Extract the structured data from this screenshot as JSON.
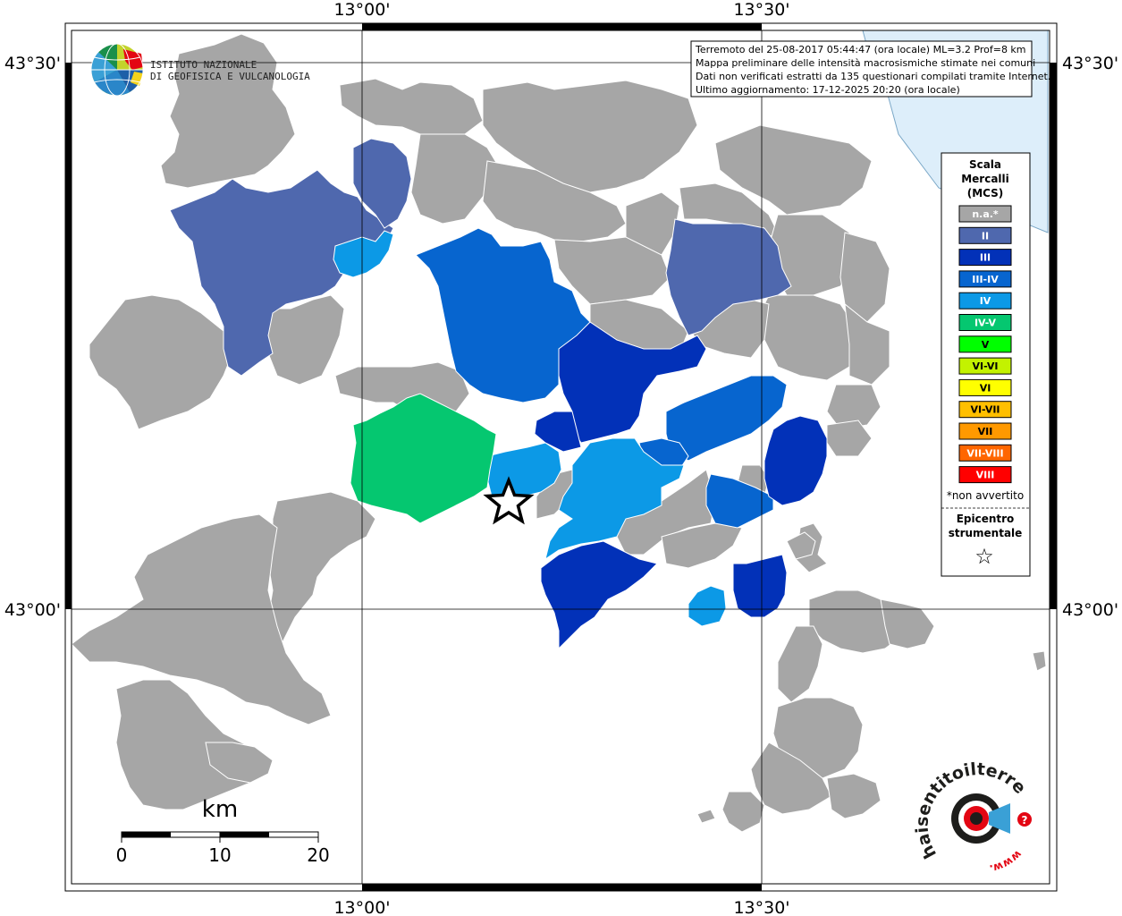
{
  "coords": {
    "top_left_lon": "13°00'",
    "top_right_lon": "13°30'",
    "bottom_left_lon": "13°00'",
    "bottom_right_lon": "13°30'",
    "left_top_lat": "43°30'",
    "left_bottom_lat": "43°00'",
    "right_top_lat": "43°30'",
    "right_bottom_lat": "43°00'"
  },
  "institute": {
    "line1": "ISTITUTO NAZIONALE",
    "line2": "DI GEOFISICA E VULCANOLOGIA"
  },
  "info_box": {
    "line1": "Terremoto del 25-08-2017 05:44:47 (ora locale) ML=3.2 Prof=8 km",
    "line2": "Mappa preliminare delle intensità macrosismiche stimate nei comuni",
    "line3": "Dati non verificati estratti da 135 questionari compilati tramite Internet.",
    "line4": "Ultimo aggiornamento: 17-12-2025 20:20 (ora locale)"
  },
  "legend": {
    "title1": "Scala",
    "title2": "Mercalli",
    "title3": "(MCS)",
    "items": [
      {
        "label": "n.a.*",
        "color": "#a6a6a6"
      },
      {
        "label": "II",
        "color": "#4f68ae"
      },
      {
        "label": "III",
        "color": "#0231b8"
      },
      {
        "label": "III-IV",
        "color": "#0765cf"
      },
      {
        "label": "IV",
        "color": "#0c99e6"
      },
      {
        "label": "IV-V",
        "color": "#05c770"
      },
      {
        "label": "V",
        "color": "#00ff00"
      },
      {
        "label": "VI-VI",
        "color": "#c3f200"
      },
      {
        "label": "VI",
        "color": "#ffff00"
      },
      {
        "label": "VI-VII",
        "color": "#ffbf00"
      },
      {
        "label": "VII",
        "color": "#ff9900"
      },
      {
        "label": "VII-VIII",
        "color": "#ff6600"
      },
      {
        "label": "VIII",
        "color": "#ff0000"
      }
    ],
    "note": "*non avvertito",
    "epicentre1": "Epicentro",
    "epicentre2": "strumentale",
    "epicentre_symbol": "☆"
  },
  "scale_bar": {
    "unit": "km",
    "labels": [
      "0",
      "10",
      "20"
    ]
  },
  "brand": {
    "text": "haisentitoilterremoto.it",
    "www": "www.",
    "question": "?"
  },
  "colors": {
    "na": "#a6a6a6",
    "II": "#4f68ae",
    "III": "#0231b8",
    "III_IV": "#0765cf",
    "IV": "#0c99e6",
    "IV_V": "#05c770",
    "sea": "#ddeefa",
    "accent": "#e30613"
  }
}
